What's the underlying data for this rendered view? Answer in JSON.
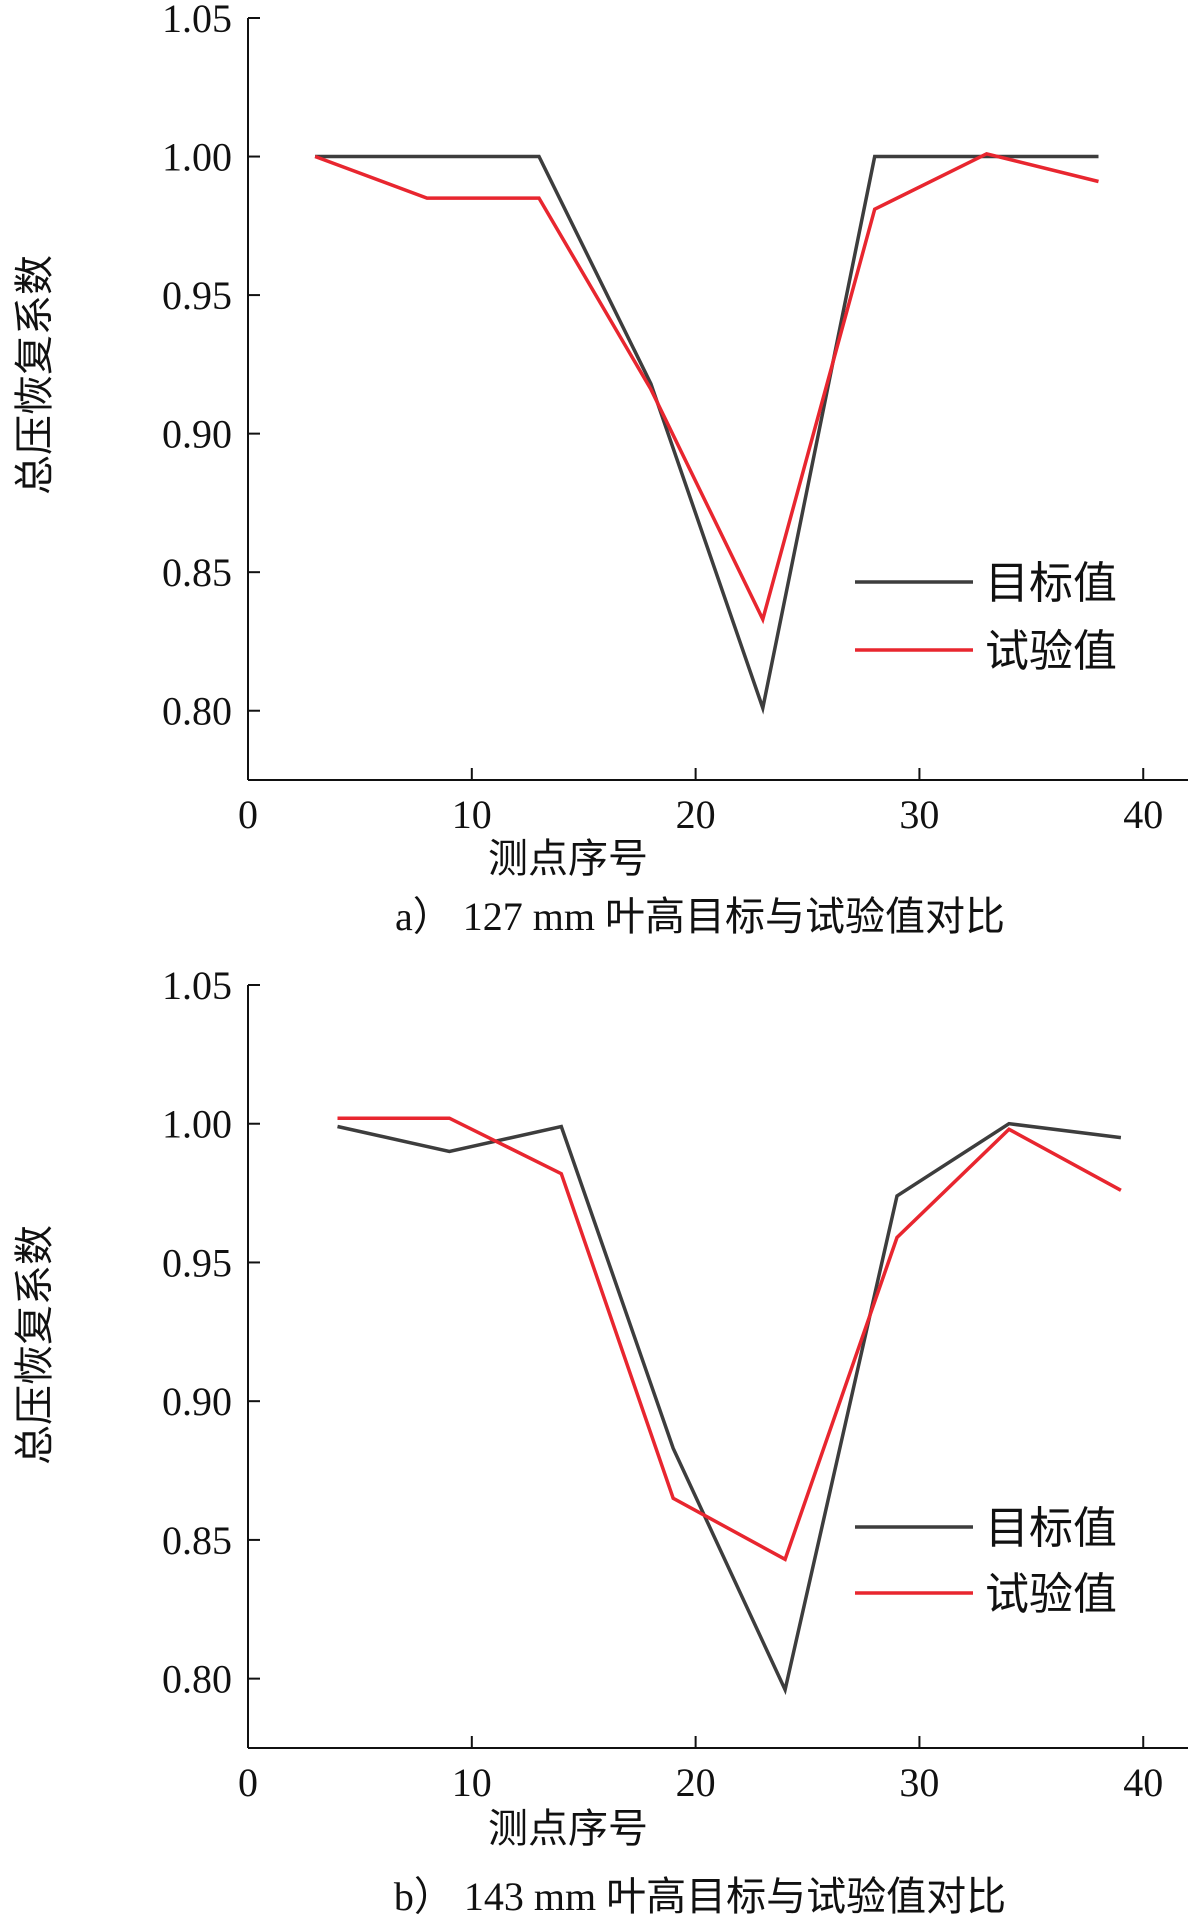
{
  "chart_data": [
    {
      "type": "line",
      "caption": "a） 127 mm 叶高目标与试验值对比",
      "xlabel": "测点序号",
      "ylabel": "总压恢复系数",
      "xlim": [
        0,
        42
      ],
      "ylim": [
        0.775,
        1.05
      ],
      "xticks": [
        "0",
        "10",
        "20",
        "30",
        "40"
      ],
      "yticks": [
        "0.80",
        "0.85",
        "0.90",
        "0.95",
        "1.00",
        "1.05"
      ],
      "legend_position": "right",
      "series": [
        {
          "name": "目标值",
          "color": "#3d3d3d",
          "x": [
            3,
            13,
            18,
            23,
            28,
            38
          ],
          "y": [
            1.0,
            1.0,
            0.918,
            0.801,
            1.0,
            1.0
          ]
        },
        {
          "name": "试验值",
          "color": "#e8262f",
          "x": [
            3,
            8,
            13,
            18,
            23,
            28,
            33,
            38
          ],
          "y": [
            1.0,
            0.985,
            0.985,
            0.916,
            0.833,
            0.981,
            1.001,
            0.991
          ]
        }
      ]
    },
    {
      "type": "line",
      "caption": "b） 143 mm 叶高目标与试验值对比",
      "xlabel": "测点序号",
      "ylabel": "总压恢复系数",
      "xlim": [
        0,
        42
      ],
      "ylim": [
        0.775,
        1.05
      ],
      "xticks": [
        "0",
        "10",
        "20",
        "30",
        "40"
      ],
      "yticks": [
        "0.80",
        "0.85",
        "0.90",
        "0.95",
        "1.00",
        "1.05"
      ],
      "legend_position": "right",
      "series": [
        {
          "name": "目标值",
          "color": "#3d3d3d",
          "x": [
            4,
            9,
            14,
            19,
            24,
            29,
            34,
            39
          ],
          "y": [
            0.999,
            0.99,
            0.999,
            0.883,
            0.796,
            0.974,
            1.0,
            0.995
          ]
        },
        {
          "name": "试验值",
          "color": "#e8262f",
          "x": [
            4,
            9,
            14,
            19,
            24,
            29,
            34,
            39
          ],
          "y": [
            1.002,
            1.002,
            0.982,
            0.865,
            0.843,
            0.959,
            0.998,
            0.976
          ]
        }
      ]
    }
  ]
}
